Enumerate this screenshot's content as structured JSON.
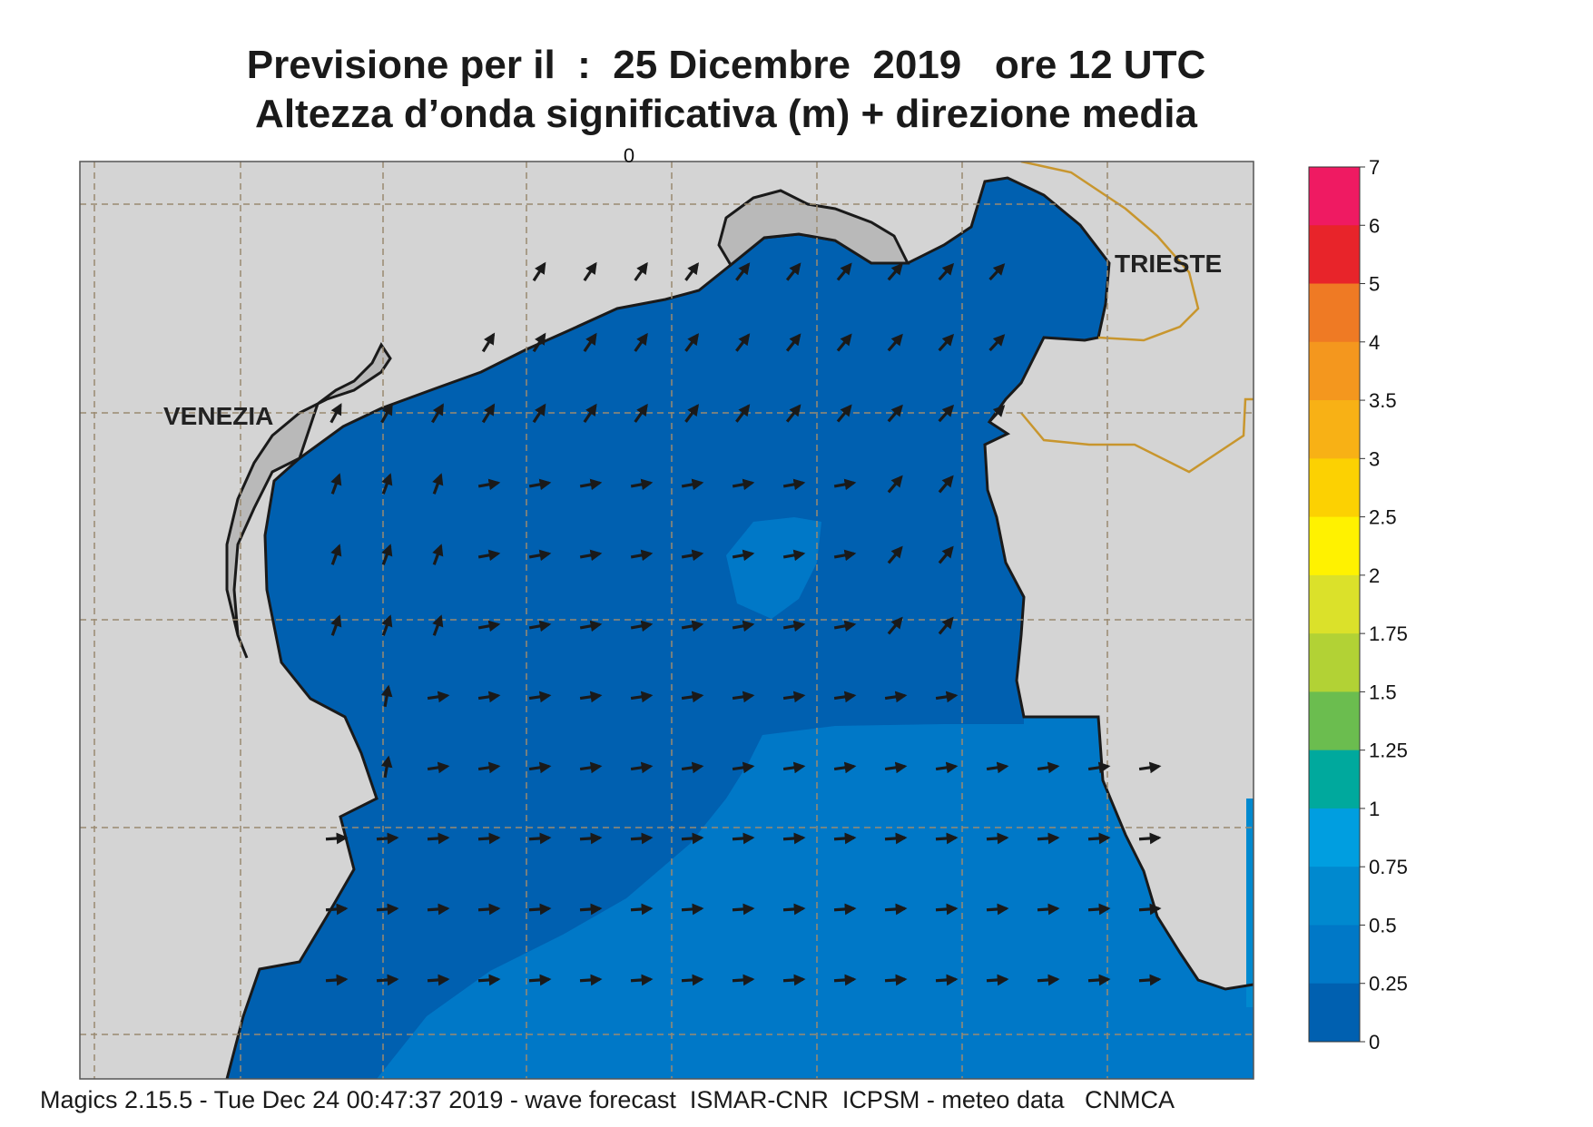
{
  "title": {
    "line1": "Previsione per il  :  25 Dicembre  2019   ore 12 UTC",
    "line2": "Altezza d’onda significativa (m) + direzione media"
  },
  "map": {
    "cities": [
      {
        "name": "VENEZIA"
      },
      {
        "name": "TRIESTE"
      }
    ],
    "grid_top_mark": "0",
    "colors": {
      "land": "#d4d4d4",
      "coast": "#1a1a1a",
      "border": "#c8962e",
      "grid": "#9a8a70",
      "arrow": "#1a1a1a"
    }
  },
  "legend": {
    "ticks": [
      "7",
      "6",
      "5",
      "4",
      "3.5",
      "3",
      "2.5",
      "2",
      "1.75",
      "1.5",
      "1.25",
      "1",
      "0.75",
      "0.5",
      "0.25",
      "0"
    ],
    "colors": [
      "#ef1a62",
      "#e8242a",
      "#ef7a24",
      "#f4971e",
      "#f8b115",
      "#fcd102",
      "#fff200",
      "#dbe12a",
      "#b2d235",
      "#6bbd4f",
      "#00a99d",
      "#009ee0",
      "#0089cf",
      "#0078c7",
      "#0060b0"
    ]
  },
  "field": {
    "band_0_025": "#0060b0",
    "band_025_05": "#0078c7",
    "band_05_075": "#0089cf"
  },
  "footer": "Magics 2.15.5 - Tue Dec 24 00:47:37 2019 - wave forecast  ISMAR-CNR  ICPSM - meteo data   CNMCA"
}
